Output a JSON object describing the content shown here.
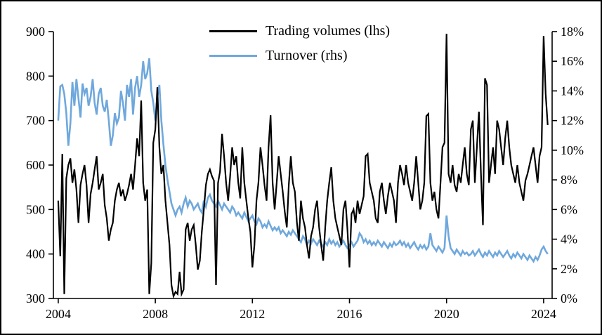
{
  "figure": {
    "background": "#ffffff",
    "border_color": "#000000"
  },
  "legend": {
    "items": [
      {
        "label": "Trading volumes (lhs)",
        "color": "#000000"
      },
      {
        "label": "Turnover (rhs)",
        "color": "#6fa8dc"
      }
    ]
  },
  "chart_data": {
    "type": "line",
    "title": "",
    "xlabel": "",
    "ylabel_left": "",
    "ylabel_right": "",
    "grid": false,
    "legend_position": "top-center-inside",
    "x_axis": {
      "start_year": 2004,
      "interval_months": 1,
      "domain": [
        2003.8,
        2024.35
      ],
      "tick_values": [
        2004,
        2008,
        2012,
        2016,
        2020,
        2024
      ],
      "tick_labels": [
        "2004",
        "2008",
        "2012",
        "2016",
        "2020",
        "2024"
      ]
    },
    "left_axis": {
      "min": 300,
      "max": 900,
      "tick_values": [
        300,
        400,
        500,
        600,
        700,
        800,
        900
      ],
      "tick_labels": [
        "300",
        "400",
        "500",
        "600",
        "700",
        "800",
        "900"
      ]
    },
    "right_axis": {
      "min": 0,
      "max": 18,
      "tick_values": [
        0,
        2,
        4,
        6,
        8,
        10,
        12,
        14,
        16,
        18
      ],
      "tick_labels": [
        "0%",
        "2%",
        "4%",
        "6%",
        "8%",
        "10%",
        "12%",
        "14%",
        "16%",
        "18%"
      ]
    },
    "series": [
      {
        "name": "Trading volumes (lhs)",
        "axis": "left",
        "color": "#000000",
        "stroke_width": 2.2,
        "values": [
          520,
          395,
          625,
          310,
          570,
          600,
          615,
          560,
          590,
          545,
          470,
          555,
          580,
          600,
          555,
          470,
          535,
          560,
          590,
          620,
          545,
          560,
          580,
          510,
          480,
          430,
          455,
          470,
          520,
          545,
          560,
          530,
          545,
          520,
          535,
          555,
          580,
          545,
          600,
          660,
          620,
          745,
          560,
          520,
          545,
          310,
          380,
          650,
          680,
          775,
          640,
          580,
          600,
          520,
          470,
          420,
          330,
          305,
          315,
          310,
          360,
          310,
          320,
          455,
          470,
          430,
          455,
          465,
          420,
          365,
          385,
          450,
          500,
          555,
          580,
          590,
          575,
          565,
          330,
          560,
          585,
          670,
          620,
          560,
          520,
          575,
          640,
          600,
          620,
          560,
          525,
          640,
          560,
          520,
          480,
          450,
          370,
          420,
          520,
          560,
          640,
          600,
          555,
          520,
          640,
          712,
          560,
          500,
          560,
          620,
          580,
          540,
          495,
          460,
          555,
          620,
          560,
          540,
          470,
          430,
          520,
          480,
          460,
          420,
          390,
          440,
          460,
          500,
          520,
          460,
          420,
          385,
          460,
          520,
          560,
          595,
          520,
          480,
          460,
          440,
          420,
          500,
          520,
          455,
          370,
          490,
          500,
          470,
          520,
          490,
          510,
          530,
          620,
          625,
          560,
          540,
          520,
          480,
          470,
          540,
          560,
          520,
          490,
          530,
          560,
          540,
          520,
          470,
          560,
          600,
          580,
          555,
          600,
          560,
          540,
          520,
          560,
          620,
          560,
          500,
          520,
          560,
          710,
          715,
          560,
          520,
          540,
          500,
          480,
          560,
          640,
          650,
          895,
          580,
          560,
          600,
          555,
          540,
          580,
          560,
          600,
          640,
          580,
          555,
          680,
          700,
          560,
          640,
          720,
          580,
          465,
          795,
          780,
          560,
          600,
          640,
          580,
          700,
          680,
          640,
          600,
          660,
          700,
          640,
          600,
          580,
          560,
          600,
          560,
          540,
          520,
          565,
          580,
          600,
          620,
          640,
          600,
          560,
          620,
          640,
          890,
          760,
          690
        ]
      },
      {
        "name": "Turnover (rhs)",
        "axis": "right",
        "color": "#6fa8dc",
        "stroke_width": 2.6,
        "values": [
          12.0,
          14.3,
          14.4,
          13.8,
          12.5,
          10.3,
          11.8,
          14.6,
          13.0,
          14.8,
          13.5,
          12.2,
          14.5,
          13.8,
          14.2,
          13.0,
          13.6,
          14.8,
          13.2,
          12.4,
          13.8,
          14.2,
          13.0,
          12.6,
          13.4,
          12.0,
          10.3,
          11.0,
          12.5,
          11.8,
          12.2,
          14.0,
          13.2,
          12.0,
          14.4,
          13.6,
          14.8,
          12.4,
          14.2,
          15.0,
          13.6,
          14.4,
          16.0,
          14.8,
          15.2,
          16.2,
          14.0,
          13.2,
          12.0,
          13.6,
          14.4,
          12.0,
          10.4,
          9.0,
          8.0,
          7.2,
          6.4,
          6.0,
          5.6,
          6.0,
          6.2,
          5.8,
          6.4,
          6.8,
          6.2,
          6.6,
          6.4,
          6.0,
          6.2,
          6.4,
          6.0,
          5.8,
          6.6,
          6.2,
          6.8,
          7.0,
          6.6,
          6.4,
          6.2,
          6.6,
          6.3,
          6.0,
          6.4,
          6.2,
          6.0,
          5.8,
          6.2,
          6.0,
          5.6,
          5.8,
          5.6,
          5.4,
          5.8,
          5.5,
          5.2,
          5.4,
          5.6,
          5.2,
          5.0,
          5.4,
          5.2,
          4.8,
          5.0,
          4.8,
          5.2,
          4.9,
          4.6,
          4.8,
          4.6,
          4.8,
          4.4,
          4.6,
          4.4,
          4.2,
          4.5,
          4.3,
          4.6,
          4.4,
          4.2,
          4.0,
          3.8,
          4.2,
          4.0,
          3.6,
          3.9,
          3.7,
          4.0,
          3.8,
          3.6,
          3.9,
          3.7,
          3.5,
          3.8,
          3.6,
          4.0,
          3.7,
          3.9,
          3.6,
          3.8,
          3.5,
          3.7,
          3.9,
          3.6,
          3.4,
          3.6,
          3.8,
          3.5,
          3.7,
          3.9,
          4.4,
          4.2,
          3.8,
          4.0,
          3.7,
          3.9,
          3.6,
          3.8,
          3.6,
          3.9,
          3.7,
          3.5,
          3.8,
          3.6,
          3.4,
          3.7,
          3.5,
          3.8,
          3.6,
          3.7,
          3.9,
          3.6,
          3.8,
          3.5,
          3.7,
          3.4,
          3.6,
          3.8,
          3.5,
          3.3,
          3.6,
          3.4,
          3.6,
          3.3,
          3.5,
          4.4,
          3.6,
          3.4,
          3.2,
          3.5,
          3.3,
          3.1,
          3.4,
          5.6,
          4.2,
          3.4,
          3.2,
          3.0,
          3.3,
          3.1,
          2.9,
          3.2,
          3.0,
          3.1,
          2.9,
          3.0,
          3.2,
          2.9,
          3.1,
          3.3,
          3.0,
          2.8,
          3.1,
          2.9,
          3.2,
          3.0,
          2.8,
          3.1,
          2.9,
          3.2,
          3.0,
          2.8,
          3.0,
          3.2,
          2.9,
          2.7,
          3.0,
          2.8,
          3.1,
          2.9,
          2.7,
          3.0,
          2.8,
          2.6,
          2.9,
          2.7,
          2.5,
          2.8,
          2.6,
          2.9,
          3.3,
          3.5,
          3.2,
          3.0
        ]
      }
    ]
  }
}
